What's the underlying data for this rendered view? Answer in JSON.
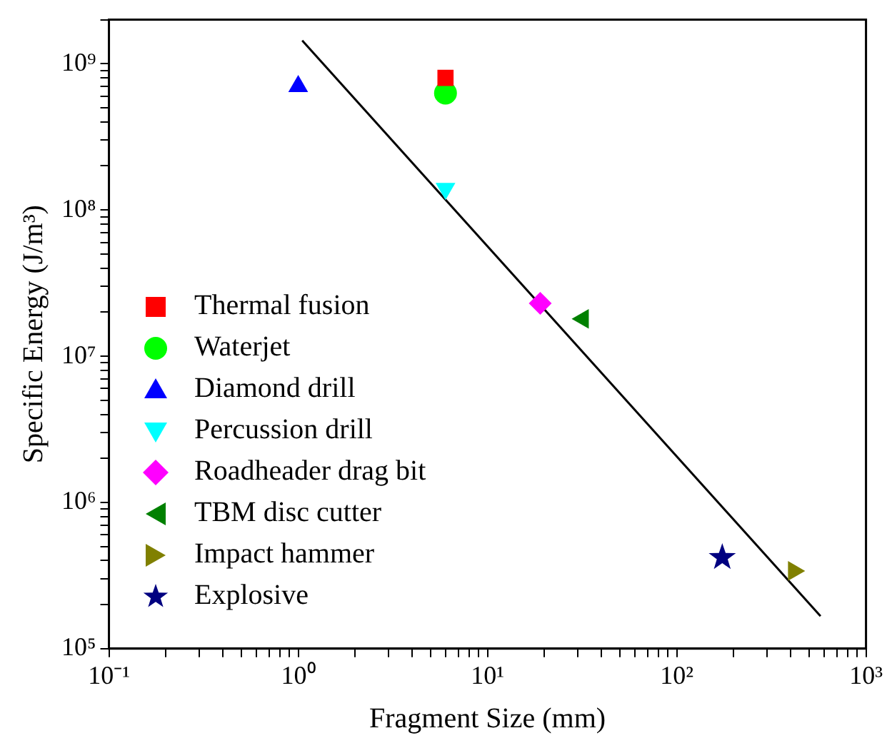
{
  "chart_data": {
    "type": "scatter",
    "xlabel": "Fragment Size (mm)",
    "ylabel": "Specific Energy (J/m³)",
    "log": "xy",
    "grid": false,
    "legend": "bottom left",
    "xlim": [
      0.1,
      1000
    ],
    "ylim": [
      100000,
      2000000000
    ],
    "xticks": [
      {
        "value": 0.1,
        "label": "10⁻¹"
      },
      {
        "value": 0.2,
        "label": null
      },
      {
        "value": 0.3,
        "label": null
      },
      {
        "value": 0.4,
        "label": null
      },
      {
        "value": 0.5,
        "label": null
      },
      {
        "value": 0.6,
        "label": null
      },
      {
        "value": 0.7,
        "label": null
      },
      {
        "value": 0.8,
        "label": null
      },
      {
        "value": 0.9,
        "label": null
      },
      {
        "value": 1,
        "label": "10⁰"
      },
      {
        "value": 2,
        "label": null
      },
      {
        "value": 3,
        "label": null
      },
      {
        "value": 4,
        "label": null
      },
      {
        "value": 5,
        "label": null
      },
      {
        "value": 6,
        "label": null
      },
      {
        "value": 7,
        "label": null
      },
      {
        "value": 8,
        "label": null
      },
      {
        "value": 9,
        "label": null
      },
      {
        "value": 10,
        "label": "10¹"
      },
      {
        "value": 20,
        "label": null
      },
      {
        "value": 30,
        "label": null
      },
      {
        "value": 40,
        "label": null
      },
      {
        "value": 50,
        "label": null
      },
      {
        "value": 60,
        "label": null
      },
      {
        "value": 70,
        "label": null
      },
      {
        "value": 80,
        "label": null
      },
      {
        "value": 90,
        "label": null
      },
      {
        "value": 100,
        "label": "10²"
      },
      {
        "value": 200,
        "label": null
      },
      {
        "value": 300,
        "label": null
      },
      {
        "value": 400,
        "label": null
      },
      {
        "value": 500,
        "label": null
      },
      {
        "value": 600,
        "label": null
      },
      {
        "value": 700,
        "label": null
      },
      {
        "value": 800,
        "label": null
      },
      {
        "value": 900,
        "label": null
      },
      {
        "value": 1000,
        "label": "10³"
      }
    ],
    "yticks": [
      {
        "value": 100000,
        "label": "10⁵"
      },
      {
        "value": 200000,
        "label": null
      },
      {
        "value": 300000,
        "label": null
      },
      {
        "value": 400000,
        "label": null
      },
      {
        "value": 500000,
        "label": null
      },
      {
        "value": 600000,
        "label": null
      },
      {
        "value": 700000,
        "label": null
      },
      {
        "value": 800000,
        "label": null
      },
      {
        "value": 900000,
        "label": null
      },
      {
        "value": 1000000,
        "label": "10⁶"
      },
      {
        "value": 2000000,
        "label": null
      },
      {
        "value": 3000000,
        "label": null
      },
      {
        "value": 4000000,
        "label": null
      },
      {
        "value": 5000000,
        "label": null
      },
      {
        "value": 6000000,
        "label": null
      },
      {
        "value": 7000000,
        "label": null
      },
      {
        "value": 8000000,
        "label": null
      },
      {
        "value": 9000000,
        "label": null
      },
      {
        "value": 10000000,
        "label": "10⁷"
      },
      {
        "value": 20000000,
        "label": null
      },
      {
        "value": 30000000,
        "label": null
      },
      {
        "value": 40000000,
        "label": null
      },
      {
        "value": 50000000,
        "label": null
      },
      {
        "value": 60000000,
        "label": null
      },
      {
        "value": 70000000,
        "label": null
      },
      {
        "value": 80000000,
        "label": null
      },
      {
        "value": 90000000,
        "label": null
      },
      {
        "value": 100000000,
        "label": "10⁸"
      },
      {
        "value": 200000000,
        "label": null
      },
      {
        "value": 300000000,
        "label": null
      },
      {
        "value": 400000000,
        "label": null
      },
      {
        "value": 500000000,
        "label": null
      },
      {
        "value": 600000000,
        "label": null
      },
      {
        "value": 700000000,
        "label": null
      },
      {
        "value": 800000000,
        "label": null
      },
      {
        "value": 900000000,
        "label": null
      },
      {
        "value": 1000000000,
        "label": "10⁹"
      },
      {
        "value": 2000000000,
        "label": null
      }
    ],
    "series": [
      {
        "name": "Thermal fusion",
        "color": "#ff0000",
        "marker": "square",
        "x": [
          6
        ],
        "values": [
          800000000
        ]
      },
      {
        "name": "Waterjet",
        "color": "#00ff00",
        "marker": "circle",
        "x": [
          6
        ],
        "values": [
          630000000
        ]
      },
      {
        "name": "Diamond drill",
        "color": "#0000ff",
        "marker": "triangle",
        "x": [
          1
        ],
        "values": [
          700000000
        ]
      },
      {
        "name": "Percussion drill",
        "color": "#00ffff",
        "marker": "triangle-down",
        "x": [
          6
        ],
        "values": [
          140000000
        ]
      },
      {
        "name": "Roadheader drag bit",
        "color": "#ff00ff",
        "marker": "diamond",
        "x": [
          19
        ],
        "values": [
          23000000
        ]
      },
      {
        "name": "TBM disc cutter",
        "color": "#008000",
        "marker": "triangle-left",
        "x": [
          32
        ],
        "values": [
          18000000
        ]
      },
      {
        "name": "Impact hammer",
        "color": "#808000",
        "marker": "triangle-right",
        "x": [
          415
        ],
        "values": [
          340000
        ]
      },
      {
        "name": "Explosive",
        "color": "#000080",
        "marker": "star",
        "x": [
          174
        ],
        "values": [
          420000
        ]
      },
      {
        "type": "line",
        "color": "#000000",
        "marker": "none",
        "line_style": "solid",
        "x": [
          1.05,
          575
        ],
        "values": [
          1440000000,
          167000
        ]
      }
    ]
  }
}
